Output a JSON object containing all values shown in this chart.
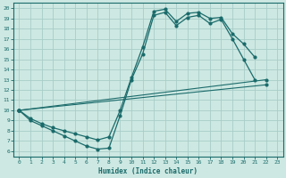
{
  "bg_color": "#cde8e2",
  "grid_color": "#a8cdc8",
  "line_color": "#1a6b6b",
  "marker_color": "#1a6b6b",
  "xlabel": "Humidex (Indice chaleur)",
  "xlim": [
    -0.5,
    23.5
  ],
  "ylim": [
    5.5,
    20.5
  ],
  "yticks": [
    6,
    7,
    8,
    9,
    10,
    11,
    12,
    13,
    14,
    15,
    16,
    17,
    18,
    19,
    20
  ],
  "xticks": [
    0,
    1,
    2,
    3,
    4,
    5,
    6,
    7,
    8,
    9,
    10,
    11,
    12,
    13,
    14,
    15,
    16,
    17,
    18,
    19,
    20,
    21,
    22,
    23
  ],
  "curve1_x": [
    0,
    1,
    2,
    3,
    4,
    5,
    6,
    7,
    8,
    9,
    10,
    11,
    12,
    13,
    14,
    15,
    16,
    17,
    18,
    19,
    20,
    21
  ],
  "curve1_y": [
    10,
    9,
    8.5,
    8,
    7.5,
    7,
    6.5,
    6.2,
    6.3,
    9.5,
    13,
    15.5,
    19.3,
    19.6,
    18.3,
    19.1,
    19.3,
    18.5,
    18.9,
    17.0,
    15.0,
    13.0
  ],
  "curve2_x": [
    0,
    1,
    2,
    3,
    4,
    5,
    6,
    7,
    8,
    9,
    10,
    11,
    12,
    13,
    14,
    15,
    16,
    17,
    18,
    19,
    20,
    21
  ],
  "curve2_y": [
    10,
    9.2,
    8.7,
    8.3,
    8.0,
    7.7,
    7.4,
    7.1,
    7.4,
    10.0,
    13.2,
    16.2,
    19.7,
    19.9,
    18.7,
    19.5,
    19.6,
    19.0,
    19.1,
    17.5,
    16.5,
    15.2
  ],
  "line3_x": [
    0,
    22
  ],
  "line3_y": [
    10,
    13
  ],
  "line4_x": [
    0,
    22
  ],
  "line4_y": [
    10,
    12.5
  ]
}
